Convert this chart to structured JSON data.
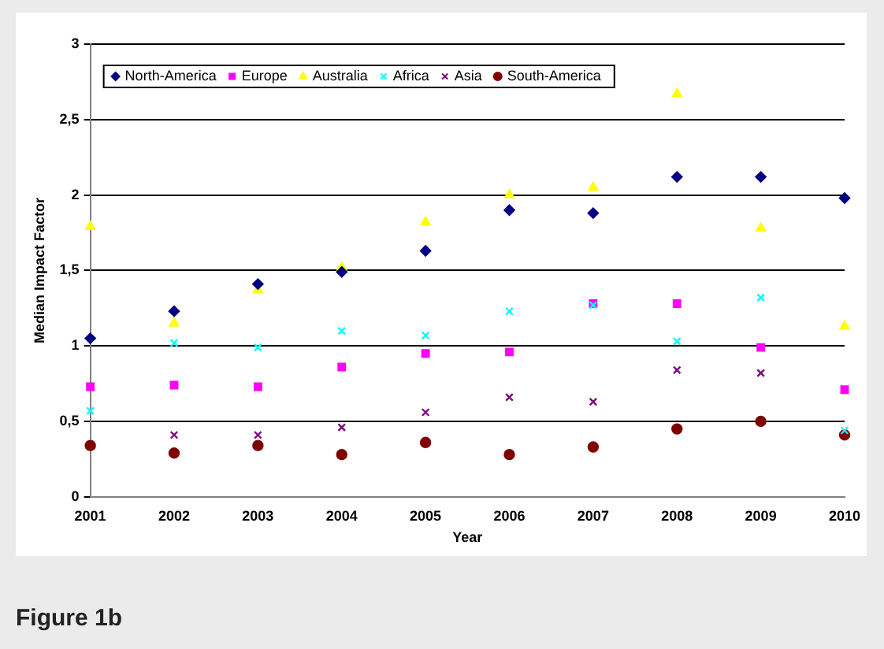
{
  "chart_data": {
    "type": "scatter",
    "xlabel": "Year",
    "ylabel": "Median Impact Factor",
    "categories": [
      "2001",
      "2002",
      "2003",
      "2004",
      "2005",
      "2006",
      "2007",
      "2008",
      "2009",
      "2010"
    ],
    "series": [
      {
        "name": "North-America",
        "color": "#000080",
        "marker": "diamond",
        "values": [
          1.05,
          1.23,
          1.41,
          1.49,
          1.63,
          1.9,
          1.88,
          2.12,
          2.12,
          1.98
        ]
      },
      {
        "name": "Europe",
        "color": "#ff00ff",
        "marker": "square",
        "values": [
          0.73,
          0.74,
          0.73,
          0.86,
          0.95,
          0.96,
          1.28,
          1.28,
          0.99,
          0.71
        ]
      },
      {
        "name": "Australia",
        "color": "#ffff00",
        "marker": "triangle",
        "values": [
          1.79,
          1.15,
          1.37,
          1.52,
          1.82,
          2.0,
          2.05,
          2.67,
          1.78,
          1.13
        ]
      },
      {
        "name": "Africa",
        "color": "#00ffff",
        "marker": "cross",
        "values": [
          0.57,
          1.02,
          0.99,
          1.1,
          1.07,
          1.23,
          1.27,
          1.03,
          1.32,
          0.44
        ]
      },
      {
        "name": "Asia",
        "color": "#800080",
        "marker": "cross",
        "values": [
          null,
          0.41,
          0.41,
          0.46,
          0.56,
          0.66,
          0.63,
          0.84,
          0.82,
          null
        ]
      },
      {
        "name": "South-America",
        "color": "#800000",
        "marker": "circle",
        "values": [
          0.34,
          0.29,
          0.34,
          0.28,
          0.36,
          0.28,
          0.33,
          0.45,
          0.5,
          0.41
        ]
      }
    ],
    "ylim": [
      0,
      3
    ],
    "yticks": [
      0,
      {
        "value": 0.5,
        "label": "0,5"
      },
      1,
      {
        "value": 1.5,
        "label": "1,5"
      },
      2,
      {
        "value": 2.5,
        "label": "2,5"
      },
      3
    ],
    "grid": "y",
    "legend": "top left",
    "annotations": [
      "Figure 1b"
    ]
  }
}
